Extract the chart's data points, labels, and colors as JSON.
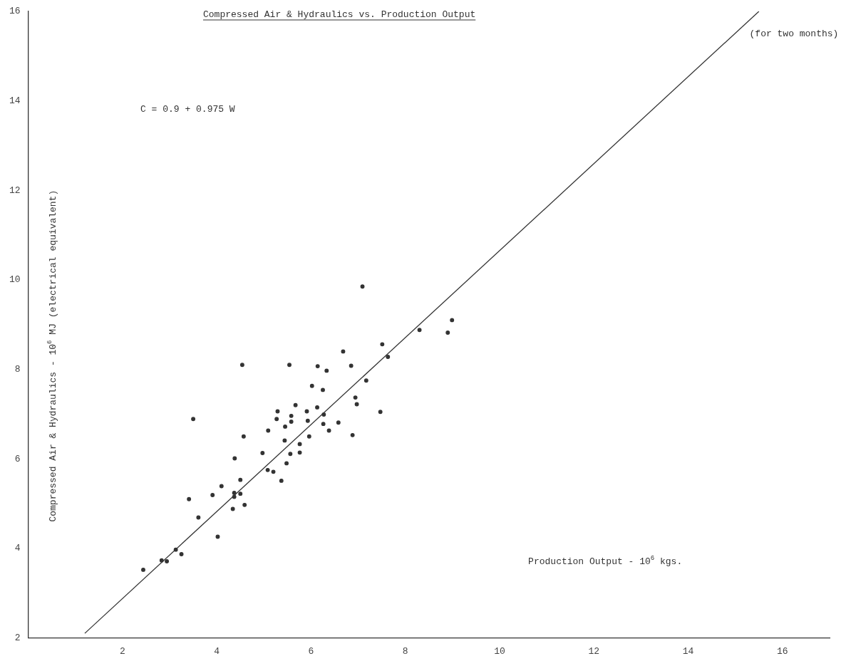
{
  "chart_data": {
    "type": "scatter",
    "title": "Compressed Air & Hydraulics vs. Production Output",
    "xlabel": "Production Output - 10$^{6}$ kgs.",
    "ylabel": "Compressed Air & Hydraulics - 10$^{6}$ MJ (electrical equivalent)",
    "annotations": [
      "C = 0.9 + 0.975 W",
      "(for two months)"
    ],
    "xlim": [
      0,
      17
    ],
    "xticks": [
      2,
      4,
      6,
      8,
      10,
      12,
      14,
      16
    ],
    "ylim": [
      2,
      16
    ],
    "yticks": [
      2,
      4,
      6,
      8,
      10,
      12,
      14,
      16
    ],
    "grid": false,
    "legend": false,
    "marker": "circle",
    "series": [
      {
        "type": "scatter",
        "color": "#333333",
        "x": [
          4.54,
          5.54,
          3.5,
          5.67,
          5.29,
          5.91,
          5.27,
          5.58,
          5.58,
          5.93,
          5.45,
          5.09,
          4.57,
          5.44,
          5.96,
          5.76,
          5.76,
          5.56,
          4.97,
          4.38,
          5.48,
          5.08,
          5.2,
          5.37,
          4.5,
          4.1,
          4.37,
          4.5,
          4.37,
          3.91,
          3.41,
          4.59,
          4.34,
          3.61,
          4.02,
          3.13,
          3.25,
          2.44,
          2.83,
          2.94,
          7.09,
          8.99,
          8.3,
          8.9,
          6.68,
          7.51,
          7.63,
          6.14,
          6.33,
          6.85,
          7.17,
          6.02,
          6.25,
          6.94,
          6.97,
          6.13,
          6.27,
          7.47,
          6.26,
          6.58,
          6.38,
          6.88
        ],
        "values": [
          8.1,
          8.1,
          6.89,
          7.2,
          7.06,
          7.06,
          6.89,
          6.96,
          6.83,
          6.85,
          6.72,
          6.63,
          6.5,
          6.41,
          6.5,
          6.33,
          6.14,
          6.11,
          6.13,
          6.01,
          5.9,
          5.75,
          5.71,
          5.51,
          5.53,
          5.39,
          5.24,
          5.22,
          5.15,
          5.19,
          5.1,
          4.97,
          4.88,
          4.69,
          4.26,
          3.97,
          3.87,
          3.52,
          3.73,
          3.71,
          9.85,
          9.1,
          8.88,
          8.82,
          8.4,
          8.56,
          8.28,
          8.07,
          7.97,
          8.08,
          7.75,
          7.63,
          7.54,
          7.37,
          7.22,
          7.15,
          6.99,
          7.05,
          6.78,
          6.81,
          6.63,
          6.53
        ]
      },
      {
        "type": "line",
        "color": "#333333",
        "x": [
          1.2,
          15.5
        ],
        "values": [
          2.1,
          16.0
        ],
        "marker": "none",
        "line_style": "solid"
      }
    ]
  }
}
